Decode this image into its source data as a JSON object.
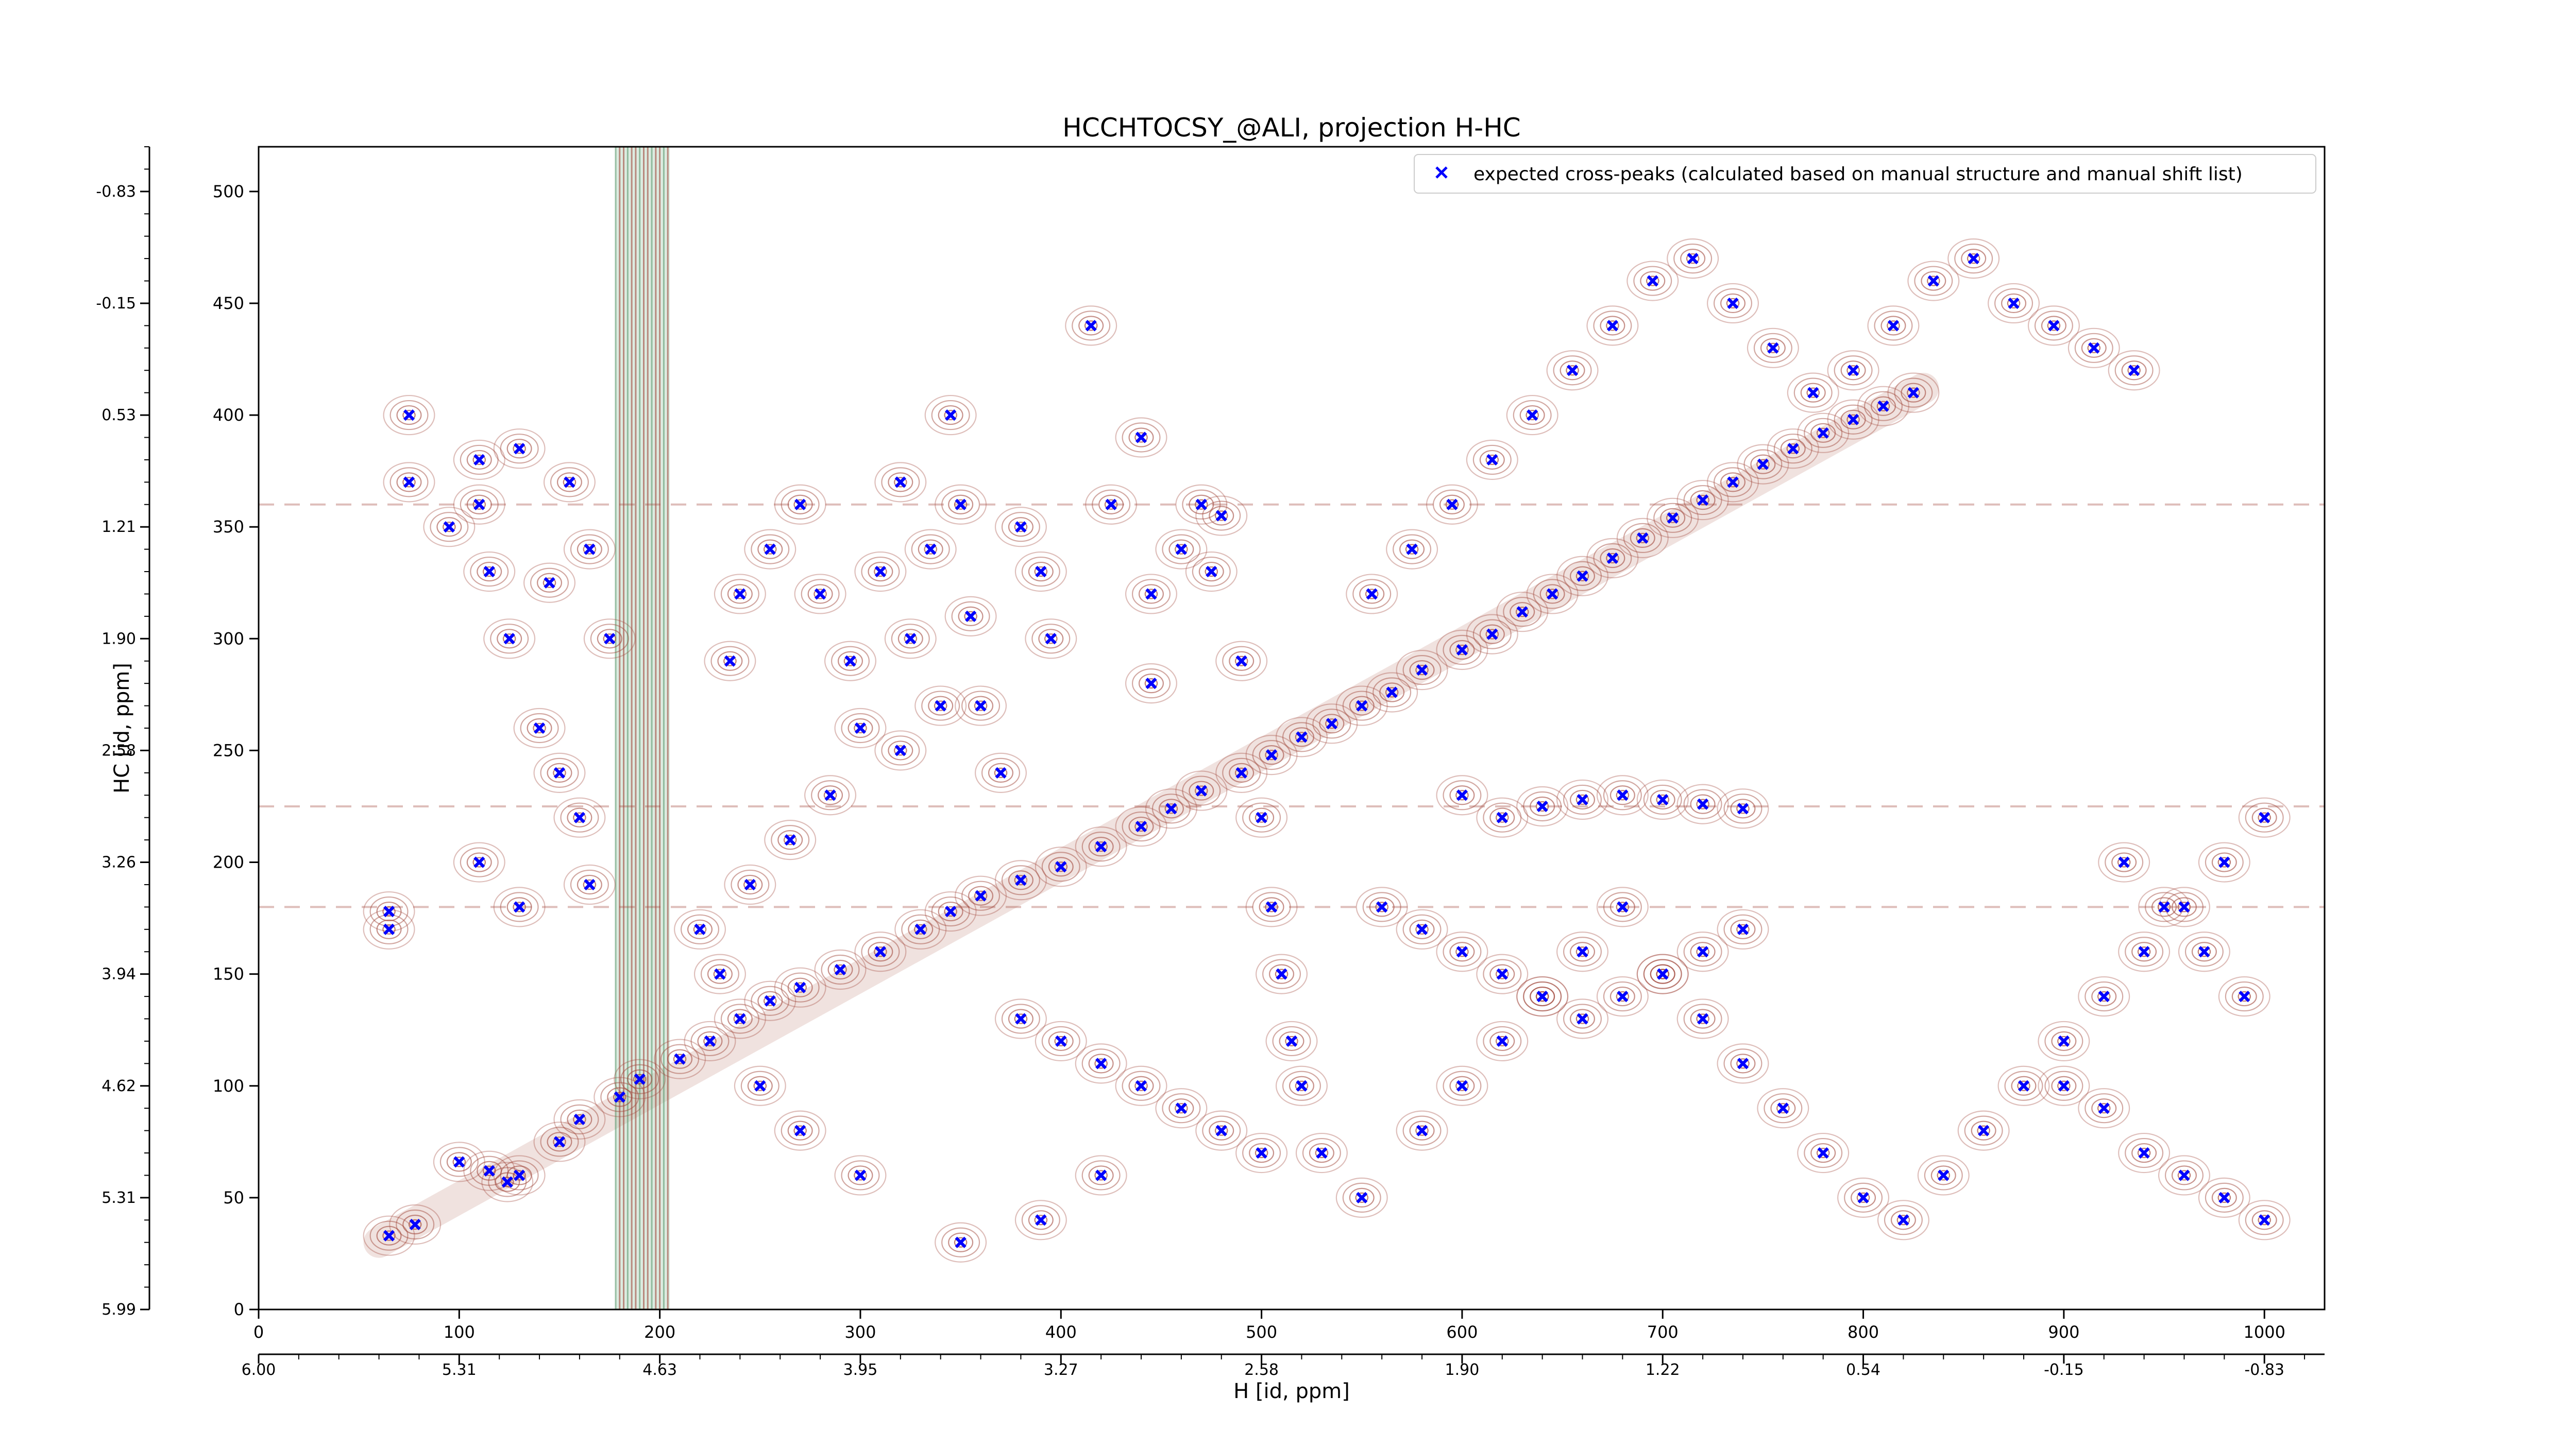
{
  "chart_data": {
    "type": "scatter",
    "title": "HCCHTOCSY_@ALI, projection H-HC",
    "xlabel": "H [id, ppm]",
    "ylabel": "HC [id, ppm]",
    "xlim": [
      0,
      1030
    ],
    "ylim": [
      0,
      520
    ],
    "x_ticks": [
      0,
      100,
      200,
      300,
      400,
      500,
      600,
      700,
      800,
      900,
      1000
    ],
    "y_ticks": [
      0,
      50,
      100,
      150,
      200,
      250,
      300,
      350,
      400,
      450,
      500
    ],
    "x_ppm_ticks": [
      {
        "pos": 0,
        "label": "6.00"
      },
      {
        "pos": 100,
        "label": "5.31"
      },
      {
        "pos": 200,
        "label": "4.63"
      },
      {
        "pos": 300,
        "label": "3.95"
      },
      {
        "pos": 400,
        "label": "3.27"
      },
      {
        "pos": 500,
        "label": "2.58"
      },
      {
        "pos": 600,
        "label": "1.90"
      },
      {
        "pos": 700,
        "label": "1.22"
      },
      {
        "pos": 800,
        "label": "0.54"
      },
      {
        "pos": 900,
        "label": "-0.15"
      },
      {
        "pos": 1000,
        "label": "-0.83"
      }
    ],
    "y_ppm_ticks": [
      {
        "pos": 0,
        "label": "5.99"
      },
      {
        "pos": 50,
        "label": "5.31"
      },
      {
        "pos": 100,
        "label": "4.62"
      },
      {
        "pos": 150,
        "label": "3.94"
      },
      {
        "pos": 200,
        "label": "3.26"
      },
      {
        "pos": 250,
        "label": "2.58"
      },
      {
        "pos": 300,
        "label": "1.90"
      },
      {
        "pos": 350,
        "label": "1.21"
      },
      {
        "pos": 400,
        "label": "0.53"
      },
      {
        "pos": 450,
        "label": "-0.15"
      },
      {
        "pos": 500,
        "label": "-0.83"
      }
    ],
    "legend": {
      "placement": "top-right",
      "entries": [
        "expected cross-peaks (calculated based on manual structure and manual shift list)"
      ]
    },
    "grid": false,
    "series": [
      {
        "name": "expected cross-peaks (calculated based on manual structure and manual shift list)",
        "color": "#0000ff",
        "marker": "x",
        "points": [
          [
            65,
            33
          ],
          [
            78,
            38
          ],
          [
            100,
            66
          ],
          [
            115,
            62
          ],
          [
            124,
            57
          ],
          [
            130,
            60
          ],
          [
            150,
            75
          ],
          [
            160,
            85
          ],
          [
            180,
            95
          ],
          [
            190,
            103
          ],
          [
            210,
            112
          ],
          [
            225,
            120
          ],
          [
            240,
            130
          ],
          [
            255,
            138
          ],
          [
            270,
            144
          ],
          [
            290,
            152
          ],
          [
            310,
            160
          ],
          [
            330,
            170
          ],
          [
            345,
            178
          ],
          [
            360,
            185
          ],
          [
            380,
            192
          ],
          [
            400,
            198
          ],
          [
            420,
            207
          ],
          [
            440,
            216
          ],
          [
            455,
            224
          ],
          [
            470,
            232
          ],
          [
            490,
            240
          ],
          [
            505,
            248
          ],
          [
            520,
            256
          ],
          [
            535,
            262
          ],
          [
            550,
            270
          ],
          [
            565,
            276
          ],
          [
            580,
            286
          ],
          [
            600,
            295
          ],
          [
            615,
            302
          ],
          [
            630,
            312
          ],
          [
            645,
            320
          ],
          [
            660,
            328
          ],
          [
            675,
            336
          ],
          [
            690,
            345
          ],
          [
            705,
            354
          ],
          [
            720,
            362
          ],
          [
            735,
            370
          ],
          [
            750,
            378
          ],
          [
            765,
            385
          ],
          [
            780,
            392
          ],
          [
            795,
            398
          ],
          [
            810,
            404
          ],
          [
            825,
            410
          ],
          [
            75,
            400
          ],
          [
            75,
            370
          ],
          [
            110,
            380
          ],
          [
            110,
            360
          ],
          [
            130,
            385
          ],
          [
            155,
            370
          ],
          [
            165,
            340
          ],
          [
            175,
            300
          ],
          [
            145,
            325
          ],
          [
            115,
            330
          ],
          [
            95,
            350
          ],
          [
            125,
            300
          ],
          [
            140,
            260
          ],
          [
            150,
            240
          ],
          [
            160,
            220
          ],
          [
            165,
            190
          ],
          [
            130,
            180
          ],
          [
            110,
            200
          ],
          [
            65,
            178
          ],
          [
            65,
            170
          ],
          [
            235,
            290
          ],
          [
            240,
            320
          ],
          [
            255,
            340
          ],
          [
            270,
            360
          ],
          [
            280,
            320
          ],
          [
            295,
            290
          ],
          [
            300,
            260
          ],
          [
            310,
            330
          ],
          [
            320,
            370
          ],
          [
            325,
            300
          ],
          [
            335,
            340
          ],
          [
            345,
            400
          ],
          [
            350,
            360
          ],
          [
            355,
            310
          ],
          [
            360,
            270
          ],
          [
            370,
            240
          ],
          [
            380,
            350
          ],
          [
            390,
            330
          ],
          [
            395,
            300
          ],
          [
            415,
            440
          ],
          [
            425,
            360
          ],
          [
            440,
            390
          ],
          [
            445,
            320
          ],
          [
            445,
            280
          ],
          [
            460,
            340
          ],
          [
            470,
            360
          ],
          [
            475,
            330
          ],
          [
            480,
            355
          ],
          [
            490,
            290
          ],
          [
            500,
            220
          ],
          [
            505,
            180
          ],
          [
            510,
            150
          ],
          [
            515,
            120
          ],
          [
            520,
            100
          ],
          [
            530,
            70
          ],
          [
            550,
            50
          ],
          [
            580,
            80
          ],
          [
            600,
            100
          ],
          [
            620,
            120
          ],
          [
            640,
            140
          ],
          [
            660,
            160
          ],
          [
            680,
            180
          ],
          [
            700,
            150
          ],
          [
            720,
            130
          ],
          [
            740,
            110
          ],
          [
            760,
            90
          ],
          [
            780,
            70
          ],
          [
            800,
            50
          ],
          [
            820,
            40
          ],
          [
            840,
            60
          ],
          [
            860,
            80
          ],
          [
            880,
            100
          ],
          [
            900,
            120
          ],
          [
            920,
            140
          ],
          [
            940,
            160
          ],
          [
            960,
            180
          ],
          [
            980,
            200
          ],
          [
            1000,
            220
          ],
          [
            555,
            320
          ],
          [
            575,
            340
          ],
          [
            595,
            360
          ],
          [
            615,
            380
          ],
          [
            635,
            400
          ],
          [
            655,
            420
          ],
          [
            675,
            440
          ],
          [
            695,
            460
          ],
          [
            715,
            470
          ],
          [
            735,
            450
          ],
          [
            755,
            430
          ],
          [
            775,
            410
          ],
          [
            795,
            420
          ],
          [
            815,
            440
          ],
          [
            835,
            460
          ],
          [
            855,
            470
          ],
          [
            875,
            450
          ],
          [
            895,
            440
          ],
          [
            915,
            430
          ],
          [
            935,
            420
          ],
          [
            600,
            230
          ],
          [
            620,
            220
          ],
          [
            640,
            225
          ],
          [
            660,
            228
          ],
          [
            680,
            230
          ],
          [
            700,
            228
          ],
          [
            720,
            226
          ],
          [
            740,
            224
          ],
          [
            560,
            180
          ],
          [
            580,
            170
          ],
          [
            600,
            160
          ],
          [
            620,
            150
          ],
          [
            640,
            140
          ],
          [
            660,
            130
          ],
          [
            680,
            140
          ],
          [
            700,
            150
          ],
          [
            720,
            160
          ],
          [
            740,
            170
          ],
          [
            380,
            130
          ],
          [
            400,
            120
          ],
          [
            420,
            110
          ],
          [
            440,
            100
          ],
          [
            460,
            90
          ],
          [
            480,
            80
          ],
          [
            500,
            70
          ],
          [
            420,
            60
          ],
          [
            390,
            40
          ],
          [
            350,
            30
          ],
          [
            300,
            60
          ],
          [
            270,
            80
          ],
          [
            250,
            100
          ],
          [
            230,
            150
          ],
          [
            220,
            170
          ],
          [
            245,
            190
          ],
          [
            265,
            210
          ],
          [
            285,
            230
          ],
          [
            320,
            250
          ],
          [
            340,
            270
          ],
          [
            900,
            100
          ],
          [
            920,
            90
          ],
          [
            940,
            70
          ],
          [
            960,
            60
          ],
          [
            980,
            50
          ],
          [
            1000,
            40
          ],
          [
            990,
            140
          ],
          [
            970,
            160
          ],
          [
            950,
            180
          ],
          [
            930,
            200
          ]
        ]
      }
    ]
  }
}
